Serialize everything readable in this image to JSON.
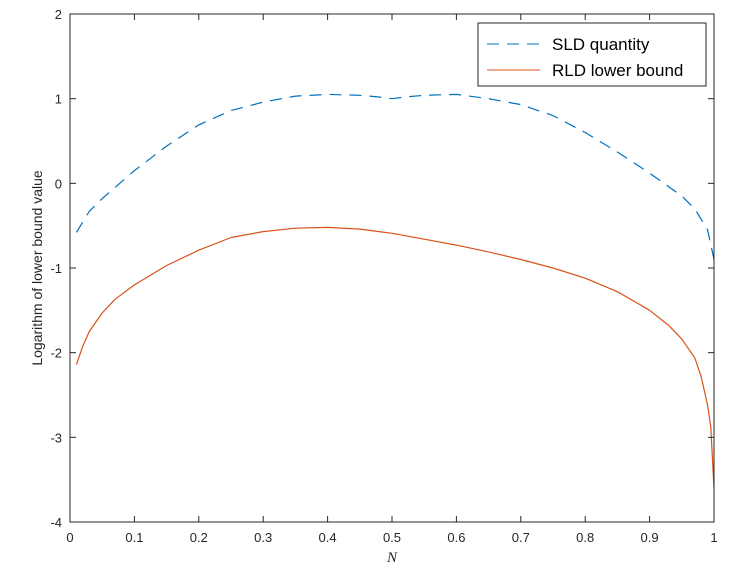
{
  "chart_data": {
    "type": "line",
    "title": "",
    "xlabel": "N",
    "ylabel": "Logarithm of lower bound value",
    "xlim": [
      0,
      1
    ],
    "ylim": [
      -4,
      2
    ],
    "xticks": [
      0,
      0.1,
      0.2,
      0.3,
      0.4,
      0.5,
      0.6,
      0.7,
      0.8,
      0.9,
      1
    ],
    "xtick_labels": [
      "0",
      "0.1",
      "0.2",
      "0.3",
      "0.4",
      "0.5",
      "0.6",
      "0.7",
      "0.8",
      "0.9",
      "1"
    ],
    "yticks": [
      -4,
      -3,
      -2,
      -1,
      0,
      1,
      2
    ],
    "ytick_labels": [
      "-4",
      "-3",
      "-2",
      "-1",
      "0",
      "1",
      "2"
    ],
    "grid": false,
    "legend_position": "top-right",
    "series": [
      {
        "name": "SLD quantity",
        "color": "#0072BD",
        "style": "dashed",
        "x": [
          0.01,
          0.03,
          0.05,
          0.1,
          0.15,
          0.2,
          0.25,
          0.3,
          0.35,
          0.4,
          0.45,
          0.48,
          0.5,
          0.52,
          0.55,
          0.6,
          0.65,
          0.7,
          0.75,
          0.8,
          0.85,
          0.9,
          0.95,
          0.97,
          0.99,
          1.0
        ],
        "y": [
          -0.58,
          -0.33,
          -0.18,
          0.15,
          0.44,
          0.69,
          0.86,
          0.96,
          1.03,
          1.05,
          1.04,
          1.02,
          1.0,
          1.02,
          1.04,
          1.05,
          1.0,
          0.93,
          0.8,
          0.6,
          0.37,
          0.12,
          -0.15,
          -0.3,
          -0.55,
          -0.9
        ]
      },
      {
        "name": "RLD lower bound",
        "color": "#D95319",
        "style": "solid",
        "x": [
          0.01,
          0.02,
          0.03,
          0.05,
          0.07,
          0.1,
          0.15,
          0.2,
          0.25,
          0.3,
          0.35,
          0.4,
          0.45,
          0.5,
          0.55,
          0.6,
          0.65,
          0.7,
          0.75,
          0.8,
          0.85,
          0.9,
          0.93,
          0.95,
          0.97,
          0.98,
          0.99,
          0.995,
          1.0
        ],
        "y": [
          -2.14,
          -1.92,
          -1.75,
          -1.53,
          -1.37,
          -1.2,
          -0.97,
          -0.79,
          -0.64,
          -0.57,
          -0.53,
          -0.52,
          -0.54,
          -0.59,
          -0.66,
          -0.73,
          -0.81,
          -0.9,
          -1.0,
          -1.12,
          -1.28,
          -1.5,
          -1.68,
          -1.84,
          -2.06,
          -2.28,
          -2.62,
          -2.88,
          -3.6
        ]
      }
    ]
  }
}
